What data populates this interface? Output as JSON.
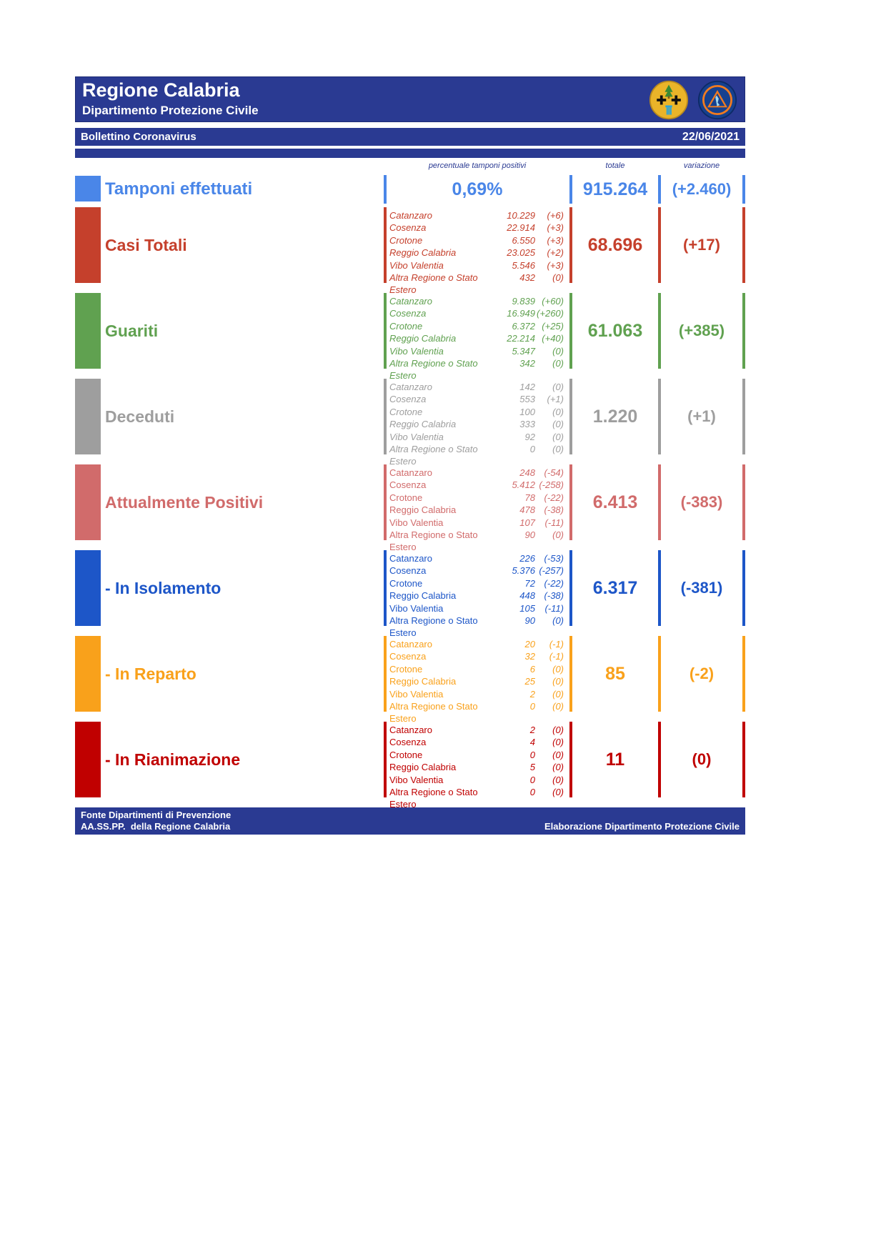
{
  "colors": {
    "navy": "#2a3a92"
  },
  "header": {
    "title": "Regione Calabria",
    "subtitle": "Dipartimento Protezione Civile",
    "logos": [
      "regione-calabria-coat-of-arms",
      "protezione-civile-badge"
    ]
  },
  "bulletin_bar": {
    "title": "Bollettino Coronavirus",
    "date": "22/06/2021"
  },
  "columns": {
    "percent": "percentuale tamponi positivi",
    "total": "totale",
    "variation": "variazione"
  },
  "tamponi": {
    "label": "Tamponi effettuati",
    "percent": "0,69%",
    "total": "915.264",
    "variation": "(+2.460)",
    "color": "#4a86e8"
  },
  "provinces": [
    "Catanzaro",
    "Cosenza",
    "Crotone",
    "Reggio Calabria",
    "Vibo Valentia",
    "Altra Regione o Stato Estero"
  ],
  "sections": [
    {
      "label": "Casi Totali",
      "color": "#c5402c",
      "names_italic": true,
      "values": [
        "10.229",
        "22.914",
        "6.550",
        "23.025",
        "5.546",
        "432"
      ],
      "changes": [
        "(+6)",
        "(+3)",
        "(+3)",
        "(+2)",
        "(+3)",
        "(0)"
      ],
      "total": "68.696",
      "variation": "(+17)"
    },
    {
      "label": "Guariti",
      "color": "#60a150",
      "names_italic": true,
      "values": [
        "9.839",
        "16.949",
        "6.372",
        "22.214",
        "5.347",
        "342"
      ],
      "changes": [
        "(+60)",
        "(+260)",
        "(+25)",
        "(+40)",
        "(0)",
        "(0)"
      ],
      "total": "61.063",
      "variation": "(+385)"
    },
    {
      "label": "Deceduti",
      "color": "#9e9e9e",
      "names_italic": true,
      "values": [
        "142",
        "553",
        "100",
        "333",
        "92",
        "0"
      ],
      "changes": [
        "(0)",
        "(+1)",
        "(0)",
        "(0)",
        "(0)",
        "(0)"
      ],
      "total": "1.220",
      "variation": "(+1)"
    },
    {
      "label": "Attualmente Positivi",
      "color": "#d16b6b",
      "names_italic": false,
      "values": [
        "248",
        "5.412",
        "78",
        "478",
        "107",
        "90"
      ],
      "changes": [
        "(-54)",
        "(-258)",
        "(-22)",
        "(-38)",
        "(-11)",
        "(0)"
      ],
      "total": "6.413",
      "variation": "(-383)"
    },
    {
      "label": "- In Isolamento",
      "color": "#1d56c8",
      "names_italic": false,
      "values": [
        "226",
        "5.376",
        "72",
        "448",
        "105",
        "90"
      ],
      "changes": [
        "(-53)",
        "(-257)",
        "(-22)",
        "(-38)",
        "(-11)",
        "(0)"
      ],
      "total": "6.317",
      "variation": "(-381)"
    },
    {
      "label": "- In Reparto",
      "color": "#f9a11b",
      "names_italic": false,
      "values": [
        "20",
        "32",
        "6",
        "25",
        "2",
        "0"
      ],
      "changes": [
        "(-1)",
        "(-1)",
        "(0)",
        "(0)",
        "(0)",
        "(0)"
      ],
      "total": "85",
      "variation": "(-2)"
    },
    {
      "label": "- In Rianimazione",
      "color": "#c00000",
      "names_italic": false,
      "values": [
        "2",
        "4",
        "0",
        "5",
        "0",
        "0"
      ],
      "changes": [
        "(0)",
        "(0)",
        "(0)",
        "(0)",
        "(0)",
        "(0)"
      ],
      "total": "11",
      "variation": "(0)"
    }
  ],
  "footer": {
    "line1": "Fonte Dipartimenti di Prevenzione",
    "line2": "AA.SS.PP.  della Regione Calabria",
    "right": "Elaborazione Dipartimento Protezione Civile"
  }
}
